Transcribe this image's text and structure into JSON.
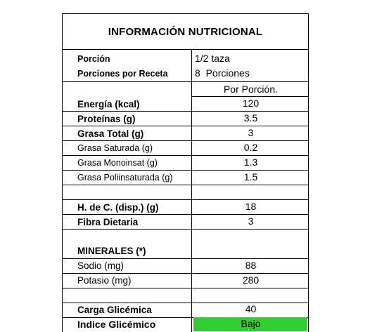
{
  "title": "INFORMACIÓN NUTRICIONAL",
  "portion": {
    "label": "Porción",
    "value": "1/2 taza"
  },
  "servings": {
    "label": "Porciones por Receta",
    "value": "8  Porciones"
  },
  "column_header": "Por Porción.",
  "rows": [
    {
      "label": "Energía (kcal)",
      "value": "120"
    },
    {
      "label": "Proteínas (g)",
      "value": "3.5"
    },
    {
      "label": "Grasa Total (g)",
      "value": "3"
    },
    {
      "label": "Grasa Saturada (g)",
      "value": "0.2"
    },
    {
      "label": "Grasa Monoinsat (g)",
      "value": "1.3"
    },
    {
      "label": "Grasa Poliinsaturada (g)",
      "value": "1.5"
    },
    {
      "label": "H. de C. (disp.) (g)",
      "value": "18"
    },
    {
      "label": "Fibra Dietaria",
      "value": "3"
    },
    {
      "label": "MINERALES (*)",
      "value": ""
    },
    {
      "label": "Sodio (mg)",
      "value": "88"
    },
    {
      "label": "Potasio (mg)",
      "value": "280"
    },
    {
      "label": "Carga Glicémica",
      "value": "40"
    },
    {
      "label": "Indice Glicémico",
      "value": "Bajo"
    }
  ],
  "colors": {
    "highlight": "#33cc33"
  }
}
